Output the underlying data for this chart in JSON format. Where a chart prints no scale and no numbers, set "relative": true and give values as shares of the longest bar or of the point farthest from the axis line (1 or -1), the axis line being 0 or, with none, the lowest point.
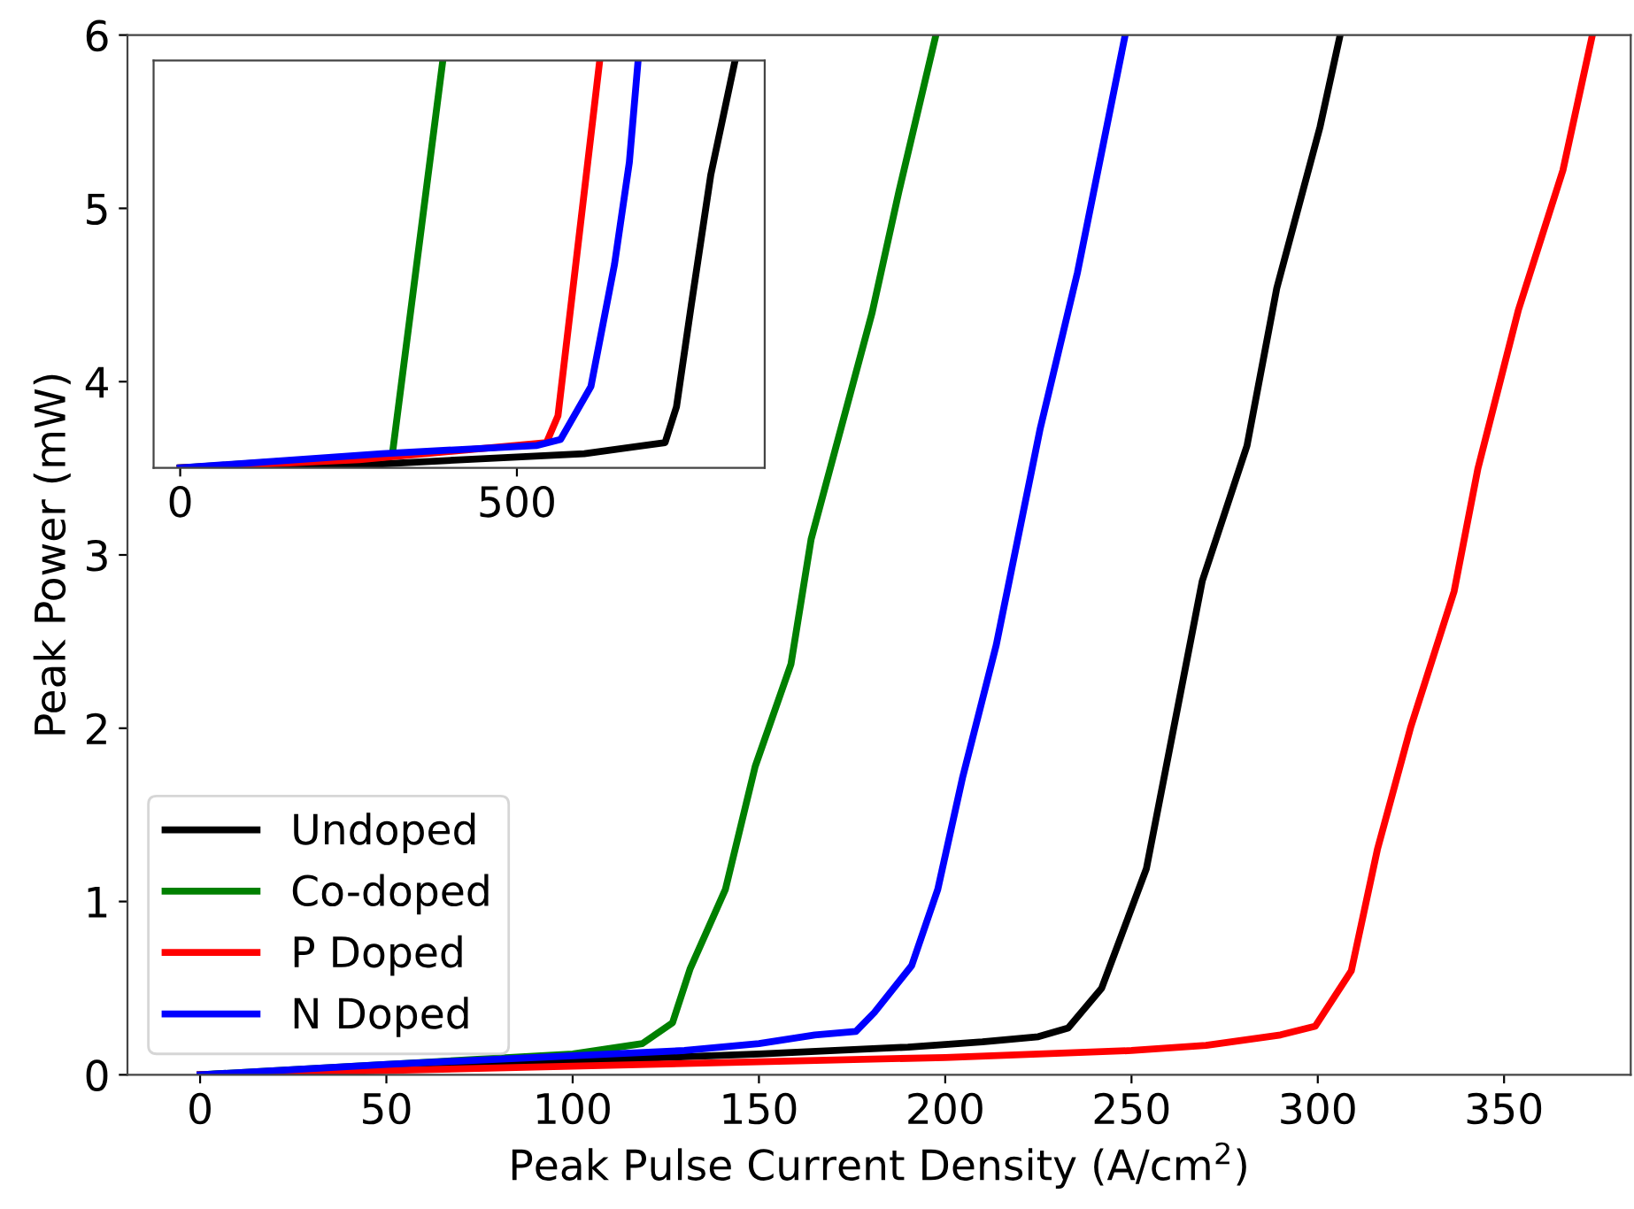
{
  "chart_data": [
    {
      "type": "line",
      "xlabel": "Peak Pulse Current Density (A/cm$^{2}$)",
      "ylabel": "Peak Power (mW)",
      "xlim": [
        -19.5,
        384
      ],
      "xticks": [
        0,
        50,
        100,
        150,
        200,
        250,
        300,
        350
      ],
      "ylim": [
        0,
        6
      ],
      "yticks": [
        0,
        1,
        2,
        3,
        4,
        5,
        6
      ],
      "grid": false,
      "legend": "bottom left",
      "series": [
        {
          "name": "Undoped",
          "color": "#000000",
          "x": [
            0,
            50,
            100,
            150,
            190,
            210,
            225,
            233,
            242,
            254,
            269,
            281,
            289,
            300.6,
            306
          ],
          "values": [
            0,
            0.04,
            0.08,
            0.12,
            0.16,
            0.19,
            0.22,
            0.27,
            0.5,
            1.19,
            2.85,
            3.63,
            4.54,
            5.47,
            6
          ]
        },
        {
          "name": "Co-doped",
          "color": "#008000",
          "x": [
            0,
            100,
            118.7,
            126.8,
            131.5,
            141,
            149,
            158.6,
            164,
            180.4,
            187.6,
            197.5
          ],
          "values": [
            0,
            0.12,
            0.18,
            0.3,
            0.61,
            1.07,
            1.78,
            2.37,
            3.09,
            4.4,
            5.1,
            6
          ]
        },
        {
          "name": "P Doped",
          "color": "#ff0000",
          "x": [
            0,
            100,
            200,
            250,
            270,
            290,
            299.3,
            309,
            316,
            325,
            336.6,
            343,
            353.8,
            365.8,
            373.7
          ],
          "values": [
            0,
            0.05,
            0.1,
            0.14,
            0.17,
            0.23,
            0.28,
            0.6,
            1.3,
            2.01,
            2.79,
            3.5,
            4.41,
            5.22,
            6
          ]
        },
        {
          "name": "N Doped",
          "color": "#0000ff",
          "x": [
            0,
            50,
            100,
            130,
            150,
            165,
            176,
            181,
            191,
            198,
            204.6,
            213.7,
            225.5,
            235.5,
            248.3
          ],
          "values": [
            0,
            0.06,
            0.11,
            0.14,
            0.18,
            0.23,
            0.25,
            0.36,
            0.63,
            1.07,
            1.71,
            2.48,
            3.73,
            4.63,
            6
          ]
        }
      ]
    },
    {
      "type": "line",
      "relative": true,
      "xlim": [
        -39.5,
        868
      ],
      "xticks": [
        0,
        500
      ],
      "grid": false,
      "series": [
        {
          "color": "#000000",
          "x": [
            0,
            300,
            600,
            720,
            737,
            759,
            788,
            824
          ],
          "values": [
            0,
            0.01,
            0.035,
            0.062,
            0.15,
            0.4,
            0.72,
            1
          ]
        },
        {
          "color": "#008000",
          "x": [
            0,
            315,
            390
          ],
          "values": [
            0,
            0.033,
            1
          ]
        },
        {
          "color": "#ff0000",
          "x": [
            0,
            266,
            544,
            561,
            623
          ],
          "values": [
            0,
            0.02,
            0.062,
            0.128,
            1
          ]
        },
        {
          "color": "#0000ff",
          "x": [
            0,
            300,
            530,
            565,
            610,
            645,
            667,
            680
          ],
          "values": [
            0,
            0.035,
            0.055,
            0.07,
            0.2,
            0.5,
            0.75,
            1
          ]
        }
      ]
    }
  ]
}
